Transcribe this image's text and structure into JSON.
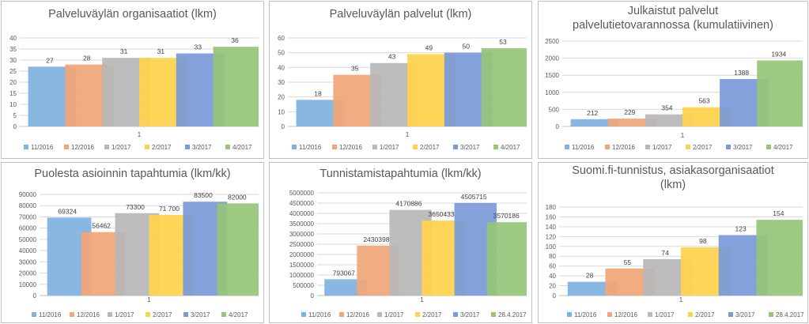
{
  "colors": [
    "#7fb2e0",
    "#f1a679",
    "#b8b8b8",
    "#ffd24d",
    "#7b9ad9",
    "#97c57a"
  ],
  "chart_data": [
    {
      "type": "bar",
      "title": "Palveluväylän organisaatiot (lkm)",
      "categories": [
        "1"
      ],
      "series": [
        {
          "name": "11/2016",
          "values": [
            27
          ],
          "label": "27"
        },
        {
          "name": "12/2016",
          "values": [
            28
          ],
          "label": "28"
        },
        {
          "name": "1/2017",
          "values": [
            31
          ],
          "label": "31"
        },
        {
          "name": "2/2017",
          "values": [
            31
          ],
          "label": "31"
        },
        {
          "name": "3/2017",
          "values": [
            33
          ],
          "label": "33"
        },
        {
          "name": "4/2017",
          "values": [
            36
          ],
          "label": "36"
        }
      ],
      "ylim": [
        0,
        40
      ],
      "yticks": [
        0,
        5,
        10,
        15,
        20,
        25,
        30,
        35,
        40
      ],
      "ytick_labels": [
        "0",
        "5",
        "10",
        "15",
        "20",
        "25",
        "30",
        "35",
        "40"
      ],
      "gridlines": true,
      "legend_position": "bottom"
    },
    {
      "type": "bar",
      "title": "Palveluväylän palvelut (lkm)",
      "categories": [
        "1"
      ],
      "series": [
        {
          "name": "11/2016",
          "values": [
            18
          ],
          "label": "18"
        },
        {
          "name": "12/2016",
          "values": [
            35
          ],
          "label": "35"
        },
        {
          "name": "1/2017",
          "values": [
            43
          ],
          "label": "43"
        },
        {
          "name": "2/2017",
          "values": [
            49
          ],
          "label": "49"
        },
        {
          "name": "3/2017",
          "values": [
            50
          ],
          "label": "50"
        },
        {
          "name": "4/2017",
          "values": [
            53
          ],
          "label": "53"
        }
      ],
      "ylim": [
        0,
        60
      ],
      "yticks": [
        0,
        10,
        20,
        30,
        40,
        50,
        60
      ],
      "ytick_labels": [
        "0",
        "10",
        "20",
        "30",
        "40",
        "50",
        "60"
      ],
      "gridlines": true,
      "legend_position": "bottom"
    },
    {
      "type": "bar",
      "title": "Julkaistut palvelut palvelutietovarannossa (kumulatiivinen)",
      "title_lines": [
        "Julkaistut palvelut",
        "palvelutietovarannossa (kumulatiivinen)"
      ],
      "categories": [
        "1"
      ],
      "series": [
        {
          "name": "11/2016",
          "values": [
            212
          ],
          "label": "212"
        },
        {
          "name": "12/2016",
          "values": [
            229
          ],
          "label": "229"
        },
        {
          "name": "1/2017",
          "values": [
            354
          ],
          "label": "354"
        },
        {
          "name": "2/2017",
          "values": [
            563
          ],
          "label": "563"
        },
        {
          "name": "3/2017",
          "values": [
            1388
          ],
          "label": "1388"
        },
        {
          "name": "4/2017",
          "values": [
            1934
          ],
          "label": "1934"
        }
      ],
      "ylim": [
        0,
        2500
      ],
      "yticks": [
        0,
        500,
        1000,
        1500,
        2000,
        2500
      ],
      "ytick_labels": [
        "0",
        "500",
        "1000",
        "1500",
        "2000",
        "2500"
      ],
      "gridlines": true,
      "legend_position": "bottom"
    },
    {
      "type": "bar",
      "title": "Puolesta asioinnin tapahtumia (lkm/kk)",
      "categories": [
        "1"
      ],
      "series": [
        {
          "name": "11/2016",
          "values": [
            69324
          ],
          "label": "69324"
        },
        {
          "name": "12/2016",
          "values": [
            56462
          ],
          "label": "56462"
        },
        {
          "name": "1/2017",
          "values": [
            73300
          ],
          "label": "73300"
        },
        {
          "name": "2/2017",
          "values": [
            71700
          ],
          "label": "71 700"
        },
        {
          "name": "3/2017",
          "values": [
            83500
          ],
          "label": "83500"
        },
        {
          "name": "4/2017",
          "values": [
            82000
          ],
          "label": "82000"
        }
      ],
      "ylim": [
        0,
        90000
      ],
      "yticks": [
        0,
        10000,
        20000,
        30000,
        40000,
        50000,
        60000,
        70000,
        80000,
        90000
      ],
      "ytick_labels": [
        "0",
        "10000",
        "20000",
        "30000",
        "40000",
        "50000",
        "60000",
        "70000",
        "80000",
        "90000"
      ],
      "gridlines": true,
      "legend_position": "bottom"
    },
    {
      "type": "bar",
      "title": "Tunnistamistapahtumia (lkm/kk)",
      "categories": [
        "1"
      ],
      "series": [
        {
          "name": "11/2016",
          "values": [
            793067
          ],
          "label": "793067"
        },
        {
          "name": "12/2016",
          "values": [
            2430398
          ],
          "label": "2430398"
        },
        {
          "name": "1/2017",
          "values": [
            4170886
          ],
          "label": "4170886"
        },
        {
          "name": "2/2017",
          "values": [
            3650433
          ],
          "label": "3650433"
        },
        {
          "name": "3/2017",
          "values": [
            4505715
          ],
          "label": "4505715"
        },
        {
          "name": "28.4.2017",
          "values": [
            3570186
          ],
          "label": "3570186"
        }
      ],
      "ylim": [
        0,
        5000000
      ],
      "yticks": [
        0,
        500000,
        1000000,
        1500000,
        2000000,
        2500000,
        3000000,
        3500000,
        4000000,
        4500000,
        5000000
      ],
      "ytick_labels": [
        "0",
        "500000",
        "1000000",
        "1500000",
        "2000000",
        "2500000",
        "3000000",
        "3500000",
        "4000000",
        "4500000",
        "5000000"
      ],
      "gridlines": true,
      "legend_position": "bottom"
    },
    {
      "type": "bar",
      "title": "Suomi.fi-tunnistus, asiakasorganisaatiot (lkm)",
      "title_lines": [
        "Suomi.fi-tunnistus, asiakasorganisaatiot",
        "(lkm)"
      ],
      "categories": [
        "1"
      ],
      "series": [
        {
          "name": "11/2016",
          "values": [
            28
          ],
          "label": "28"
        },
        {
          "name": "12/2016",
          "values": [
            55
          ],
          "label": "55"
        },
        {
          "name": "1/2017",
          "values": [
            74
          ],
          "label": "74"
        },
        {
          "name": "2/2017",
          "values": [
            98
          ],
          "label": "98"
        },
        {
          "name": "3/2017",
          "values": [
            123
          ],
          "label": "123"
        },
        {
          "name": "28.4.2017",
          "values": [
            154
          ],
          "label": "154"
        }
      ],
      "ylim": [
        0,
        180
      ],
      "yticks": [
        0,
        20,
        40,
        60,
        80,
        100,
        120,
        140,
        160,
        180
      ],
      "ytick_labels": [
        "0",
        "20",
        "40",
        "60",
        "80",
        "100",
        "120",
        "140",
        "160",
        "180"
      ],
      "gridlines": true,
      "legend_position": "bottom"
    }
  ]
}
